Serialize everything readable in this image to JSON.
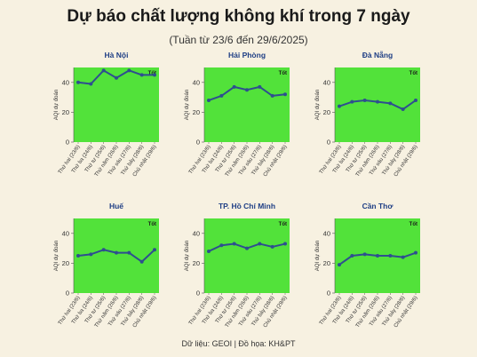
{
  "title": "Dự báo chất lượng không khí trong 7 ngày",
  "subtitle": "(Tuần từ 23/6 đến 29/6/2025)",
  "source_label": "Dữ liệu: GEOI | Đồ họa: KH&PT",
  "colors": {
    "background": "#f7f1e1",
    "good_zone": "#52e23a",
    "line": "#2e4f8f",
    "panel_title": "#1f3f85"
  },
  "chart_data": [
    {
      "type": "line",
      "title": "Hà Nội",
      "ylabel": "AQI dự đoán",
      "zone_label": "Tốt",
      "categories": [
        "Thứ hai (23/6)",
        "Thứ ba (24/6)",
        "Thứ tư (25/6)",
        "Thứ năm (26/6)",
        "Thứ sáu (27/6)",
        "Thứ bảy (28/6)",
        "Chủ nhật (29/6)"
      ],
      "values": [
        40,
        39,
        48,
        43,
        48,
        45,
        45
      ],
      "ylim": [
        0,
        50
      ],
      "yticks": [
        0,
        20,
        40
      ]
    },
    {
      "type": "line",
      "title": "Hải Phòng",
      "ylabel": "AQI dự đoán",
      "zone_label": "Tốt",
      "categories": [
        "Thứ hai (23/6)",
        "Thứ ba (24/6)",
        "Thứ tư (25/6)",
        "Thứ năm (26/6)",
        "Thứ sáu (27/6)",
        "Thứ bảy (28/6)",
        "Chủ nhật (29/6)"
      ],
      "values": [
        28,
        31,
        37,
        35,
        37,
        31,
        32
      ],
      "ylim": [
        0,
        50
      ],
      "yticks": [
        0,
        20,
        40
      ]
    },
    {
      "type": "line",
      "title": "Đà Nẵng",
      "ylabel": "AQI dự đoán",
      "zone_label": "Tốt",
      "categories": [
        "Thứ hai (23/6)",
        "Thứ ba (24/6)",
        "Thứ tư (25/6)",
        "Thứ năm (26/6)",
        "Thứ sáu (27/6)",
        "Thứ bảy (28/6)",
        "Chủ nhật (29/6)"
      ],
      "values": [
        24,
        27,
        28,
        27,
        26,
        22,
        28
      ],
      "ylim": [
        0,
        50
      ],
      "yticks": [
        0,
        20,
        40
      ]
    },
    {
      "type": "line",
      "title": "Huế",
      "ylabel": "AQI dự đoán",
      "zone_label": "Tốt",
      "categories": [
        "Thứ hai (23/6)",
        "Thứ ba (24/6)",
        "Thứ tư (25/6)",
        "Thứ năm (26/6)",
        "Thứ sáu (27/6)",
        "Thứ bảy (28/6)",
        "Chủ nhật (29/6)"
      ],
      "values": [
        25,
        26,
        29,
        27,
        27,
        21,
        29
      ],
      "ylim": [
        0,
        50
      ],
      "yticks": [
        0,
        20,
        40
      ]
    },
    {
      "type": "line",
      "title": "TP. Hồ Chí Minh",
      "ylabel": "AQI dự đoán",
      "zone_label": "Tốt",
      "categories": [
        "Thứ hai (23/6)",
        "Thứ ba (24/6)",
        "Thứ tư (25/6)",
        "Thứ năm (26/6)",
        "Thứ sáu (27/6)",
        "Thứ bảy (28/6)",
        "Chủ nhật (29/6)"
      ],
      "values": [
        28,
        32,
        33,
        30,
        33,
        31,
        33
      ],
      "ylim": [
        0,
        50
      ],
      "yticks": [
        0,
        20,
        40
      ]
    },
    {
      "type": "line",
      "title": "Cần Thơ",
      "ylabel": "AQI dự đoán",
      "zone_label": "Tốt",
      "categories": [
        "Thứ hai (23/6)",
        "Thứ ba (24/6)",
        "Thứ tư (25/6)",
        "Thứ năm (26/6)",
        "Thứ sáu (27/6)",
        "Thứ bảy (28/6)",
        "Chủ nhật (29/6)"
      ],
      "values": [
        19,
        25,
        26,
        25,
        25,
        24,
        27
      ],
      "ylim": [
        0,
        50
      ],
      "yticks": [
        0,
        20,
        40
      ]
    }
  ]
}
